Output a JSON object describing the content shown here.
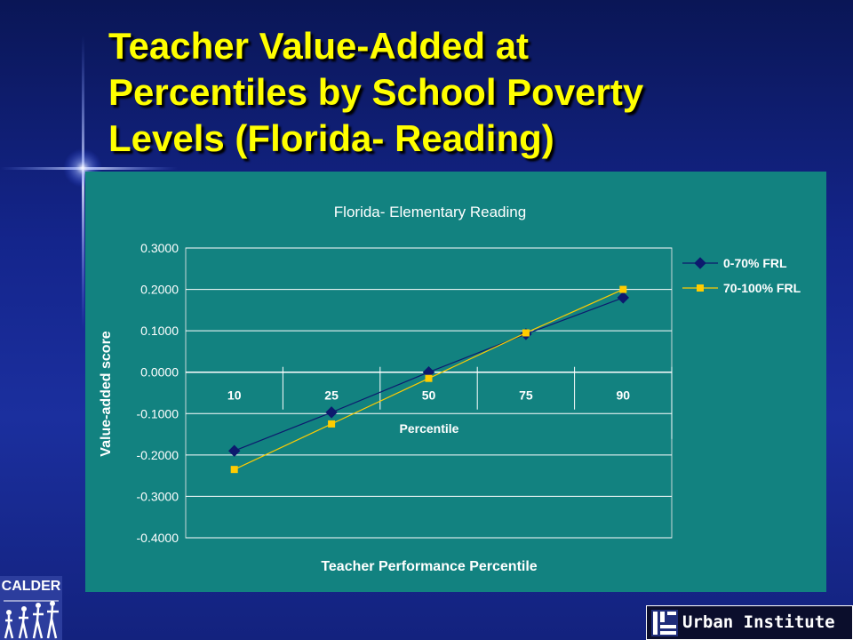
{
  "slide": {
    "title_lines": [
      "Teacher Value-Added at",
      "Percentiles by School Poverty",
      "Levels (Florida- Reading)"
    ]
  },
  "logos": {
    "calder": "CALDER",
    "urban": "Urban Institute"
  },
  "colors": {
    "title": "#ffff00",
    "panel": "#128280",
    "series_1": "#0d1a6e",
    "series_2": "#ffcc00"
  },
  "chart_data": {
    "type": "line",
    "title": "Florida- Elementary Reading",
    "xlabel": "Teacher Performance Percentile",
    "ylabel": "Value-added score",
    "inner_axis_label": "Percentile",
    "categories": [
      "10",
      "25",
      "50",
      "75",
      "90"
    ],
    "y_ticks": [
      "0.3000",
      "0.2000",
      "0.1000",
      "0.0000",
      "-0.1000",
      "-0.2000",
      "-0.3000",
      "-0.4000"
    ],
    "ylim": [
      -0.4,
      0.3
    ],
    "grid": "horizontal",
    "legend_position": "right",
    "series": [
      {
        "name": "0-70% FRL",
        "marker": "diamond",
        "color": "#0d1a6e",
        "values": [
          -0.19,
          -0.097,
          0.0,
          0.092,
          0.18
        ]
      },
      {
        "name": "70-100% FRL",
        "marker": "square",
        "color": "#ffcc00",
        "values": [
          -0.235,
          -0.125,
          -0.015,
          0.095,
          0.2
        ]
      }
    ]
  }
}
